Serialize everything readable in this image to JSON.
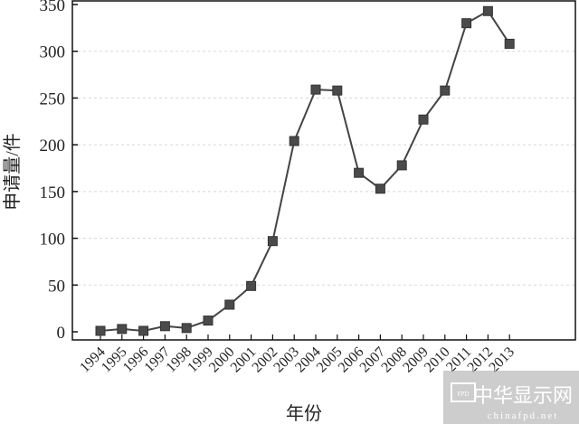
{
  "chart_data": {
    "type": "line",
    "title": "",
    "xlabel": "年份",
    "ylabel": "申请量/件",
    "x": [
      "1994",
      "1995",
      "1996",
      "1997",
      "1998",
      "1999",
      "2000",
      "2001",
      "2002",
      "2003",
      "2004",
      "2005",
      "2006",
      "2007",
      "2008",
      "2009",
      "2010",
      "2011",
      "2012",
      "2013"
    ],
    "values": [
      1,
      3,
      1,
      6,
      4,
      12,
      29,
      49,
      97,
      204,
      259,
      258,
      170,
      153,
      178,
      227,
      258,
      330,
      343,
      308
    ],
    "ylim": [
      0,
      350
    ],
    "yticks": [
      0,
      50,
      100,
      150,
      200,
      250,
      300,
      350
    ],
    "grid": true,
    "marker": "square",
    "colors": {
      "line": "#444444",
      "marker": "#4a4a4a",
      "grid": "#d8d8d8",
      "watermark": "#bdbdbd"
    }
  },
  "watermark": {
    "logo_text": "FPD",
    "name": "中华显示网",
    "url": "chinafpd.net"
  }
}
